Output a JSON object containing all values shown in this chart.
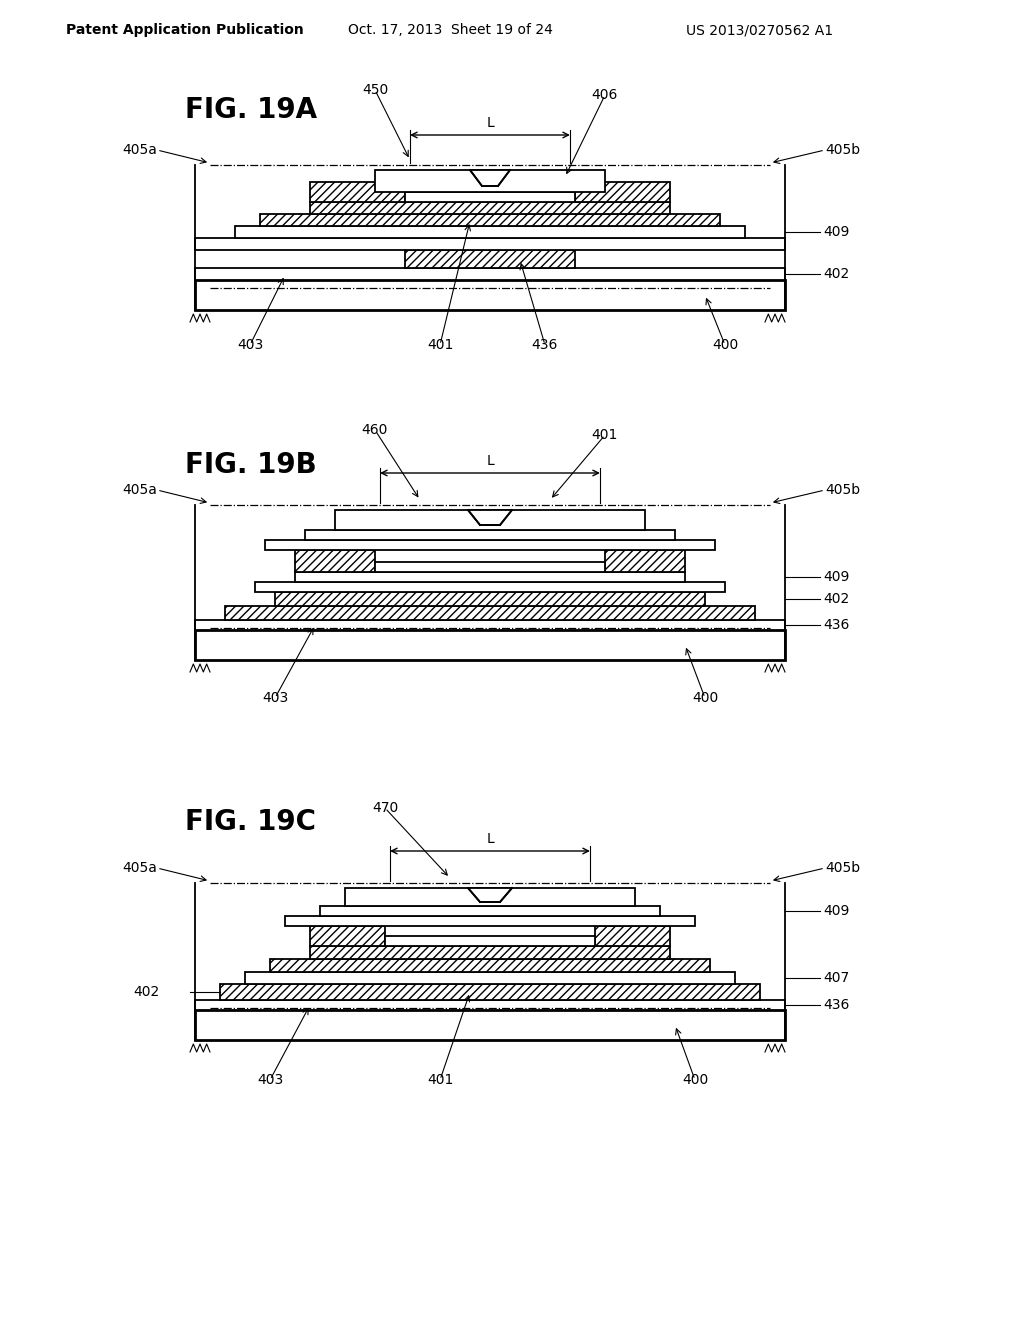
{
  "background_color": "#ffffff",
  "header_left": "Patent Application Publication",
  "header_mid": "Oct. 17, 2013  Sheet 19 of 24",
  "header_right": "US 2013/0270562 A1",
  "lw_thin": 0.8,
  "lw_med": 1.3,
  "lw_thick": 2.0,
  "hatch": "////",
  "hatch_dense": "////"
}
